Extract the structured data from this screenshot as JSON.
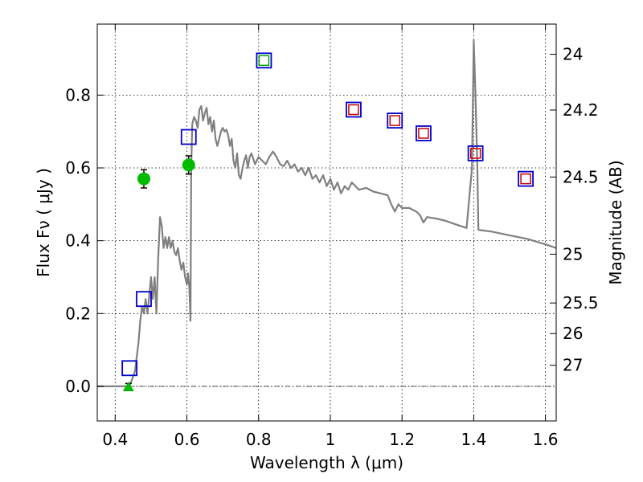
{
  "chart_data": {
    "type": "scatter",
    "xlabel": "Wavelength  λ (μm)",
    "ylabel": "Flux  Fν  ( μJy )",
    "ylabel_right": "Magnitude (AB)",
    "xlim": [
      0.35,
      1.63
    ],
    "ylim": [
      -0.095,
      0.995
    ],
    "grid": true,
    "x_ticks": [
      0.4,
      0.6,
      0.8,
      1.0,
      1.2,
      1.4,
      1.6
    ],
    "x_tick_labels": [
      "0.4",
      "0.6",
      "0.8",
      "1",
      "1.2",
      "1.4",
      "1.6"
    ],
    "y_ticks": [
      0.0,
      0.2,
      0.4,
      0.6,
      0.8
    ],
    "y_tick_labels": [
      "0.0",
      "0.2",
      "0.4",
      "0.6",
      "0.8"
    ],
    "right_ticks": [
      {
        "flux": 0.912,
        "label": "24"
      },
      {
        "flux": 0.759,
        "label": "24.2"
      },
      {
        "flux": 0.575,
        "label": "24.5"
      },
      {
        "flux": 0.363,
        "label": "25"
      },
      {
        "flux": 0.229,
        "label": "25.5"
      },
      {
        "flux": 0.145,
        "label": "26"
      },
      {
        "flux": 0.058,
        "label": "27"
      }
    ],
    "series": [
      {
        "name": "model SED",
        "kind": "line",
        "color": "#808080",
        "points": [
          [
            0.35,
            0.0
          ],
          [
            0.44,
            0.0
          ],
          [
            0.455,
            0.04
          ],
          [
            0.465,
            0.12
          ],
          [
            0.47,
            0.18
          ],
          [
            0.475,
            0.22
          ],
          [
            0.48,
            0.2
          ],
          [
            0.485,
            0.24
          ],
          [
            0.49,
            0.2
          ],
          [
            0.5,
            0.3
          ],
          [
            0.505,
            0.24
          ],
          [
            0.51,
            0.3
          ],
          [
            0.515,
            0.2
          ],
          [
            0.52,
            0.35
          ],
          [
            0.525,
            0.465
          ],
          [
            0.53,
            0.44
          ],
          [
            0.535,
            0.38
          ],
          [
            0.54,
            0.41
          ],
          [
            0.545,
            0.38
          ],
          [
            0.55,
            0.41
          ],
          [
            0.555,
            0.38
          ],
          [
            0.56,
            0.4
          ],
          [
            0.565,
            0.37
          ],
          [
            0.57,
            0.36
          ],
          [
            0.575,
            0.38
          ],
          [
            0.58,
            0.345
          ],
          [
            0.585,
            0.32
          ],
          [
            0.59,
            0.34
          ],
          [
            0.595,
            0.3
          ],
          [
            0.6,
            0.28
          ],
          [
            0.603,
            0.31
          ],
          [
            0.607,
            0.27
          ],
          [
            0.61,
            0.18
          ],
          [
            0.612,
            0.6
          ],
          [
            0.615,
            0.72
          ],
          [
            0.62,
            0.74
          ],
          [
            0.625,
            0.73
          ],
          [
            0.63,
            0.71
          ],
          [
            0.635,
            0.76
          ],
          [
            0.64,
            0.77
          ],
          [
            0.645,
            0.73
          ],
          [
            0.65,
            0.75
          ],
          [
            0.655,
            0.765
          ],
          [
            0.66,
            0.72
          ],
          [
            0.665,
            0.74
          ],
          [
            0.67,
            0.7
          ],
          [
            0.675,
            0.73
          ],
          [
            0.68,
            0.68
          ],
          [
            0.685,
            0.66
          ],
          [
            0.69,
            0.68
          ],
          [
            0.695,
            0.7
          ],
          [
            0.7,
            0.71
          ],
          [
            0.705,
            0.7
          ],
          [
            0.71,
            0.705
          ],
          [
            0.715,
            0.69
          ],
          [
            0.72,
            0.66
          ],
          [
            0.725,
            0.68
          ],
          [
            0.73,
            0.62
          ],
          [
            0.735,
            0.6
          ],
          [
            0.74,
            0.64
          ],
          [
            0.745,
            0.58
          ],
          [
            0.75,
            0.57
          ],
          [
            0.755,
            0.6
          ],
          [
            0.76,
            0.62
          ],
          [
            0.765,
            0.635
          ],
          [
            0.77,
            0.6
          ],
          [
            0.775,
            0.63
          ],
          [
            0.78,
            0.64
          ],
          [
            0.785,
            0.625
          ],
          [
            0.79,
            0.61
          ],
          [
            0.8,
            0.63
          ],
          [
            0.81,
            0.62
          ],
          [
            0.82,
            0.61
          ],
          [
            0.83,
            0.63
          ],
          [
            0.84,
            0.645
          ],
          [
            0.85,
            0.63
          ],
          [
            0.86,
            0.61
          ],
          [
            0.87,
            0.605
          ],
          [
            0.88,
            0.62
          ],
          [
            0.89,
            0.6
          ],
          [
            0.9,
            0.61
          ],
          [
            0.91,
            0.59
          ],
          [
            0.92,
            0.6
          ],
          [
            0.93,
            0.58
          ],
          [
            0.94,
            0.6
          ],
          [
            0.95,
            0.57
          ],
          [
            0.96,
            0.58
          ],
          [
            0.97,
            0.56
          ],
          [
            0.98,
            0.58
          ],
          [
            0.99,
            0.55
          ],
          [
            1.0,
            0.57
          ],
          [
            1.01,
            0.54
          ],
          [
            1.02,
            0.56
          ],
          [
            1.03,
            0.53
          ],
          [
            1.04,
            0.55
          ],
          [
            1.05,
            0.54
          ],
          [
            1.06,
            0.56
          ],
          [
            1.08,
            0.54
          ],
          [
            1.1,
            0.545
          ],
          [
            1.12,
            0.535
          ],
          [
            1.14,
            0.53
          ],
          [
            1.16,
            0.525
          ],
          [
            1.17,
            0.5
          ],
          [
            1.18,
            0.48
          ],
          [
            1.19,
            0.5
          ],
          [
            1.2,
            0.49
          ],
          [
            1.22,
            0.49
          ],
          [
            1.24,
            0.48
          ],
          [
            1.25,
            0.47
          ],
          [
            1.26,
            0.45
          ],
          [
            1.27,
            0.465
          ],
          [
            1.3,
            0.46
          ],
          [
            1.32,
            0.455
          ],
          [
            1.35,
            0.445
          ],
          [
            1.38,
            0.435
          ],
          [
            1.395,
            0.6
          ],
          [
            1.4,
            0.95
          ],
          [
            1.405,
            0.8
          ],
          [
            1.41,
            0.6
          ],
          [
            1.413,
            0.43
          ],
          [
            1.45,
            0.425
          ],
          [
            1.5,
            0.415
          ],
          [
            1.55,
            0.405
          ],
          [
            1.6,
            0.39
          ],
          [
            1.63,
            0.38
          ]
        ]
      },
      {
        "name": "blue squares",
        "kind": "marker",
        "marker": "square",
        "edge": "#0000cc",
        "points": [
          [
            0.44,
            0.05
          ],
          [
            0.48,
            0.24
          ],
          [
            0.605,
            0.685
          ],
          [
            0.815,
            0.895
          ],
          [
            1.065,
            0.76
          ],
          [
            1.18,
            0.73
          ],
          [
            1.26,
            0.695
          ],
          [
            1.405,
            0.64
          ],
          [
            1.545,
            0.57
          ]
        ]
      },
      {
        "name": "red squares",
        "kind": "marker",
        "marker": "square",
        "edge": "#cc0000",
        "points": [
          [
            1.065,
            0.76
          ],
          [
            1.18,
            0.73
          ],
          [
            1.26,
            0.695
          ],
          [
            1.405,
            0.64
          ],
          [
            1.545,
            0.57
          ]
        ]
      },
      {
        "name": "green square",
        "kind": "marker",
        "marker": "square",
        "edge": "#00aa00",
        "points": [
          [
            0.815,
            0.895
          ]
        ]
      },
      {
        "name": "green circles",
        "kind": "marker",
        "marker": "circle",
        "fill": "#00bb00",
        "points": [
          [
            0.48,
            0.57,
            0.025
          ],
          [
            0.605,
            0.608,
            0.025
          ]
        ]
      },
      {
        "name": "green triangle",
        "kind": "marker",
        "marker": "triangle",
        "fill": "#00bb00",
        "points": [
          [
            0.437,
            0.0,
            0.008
          ]
        ]
      }
    ]
  }
}
